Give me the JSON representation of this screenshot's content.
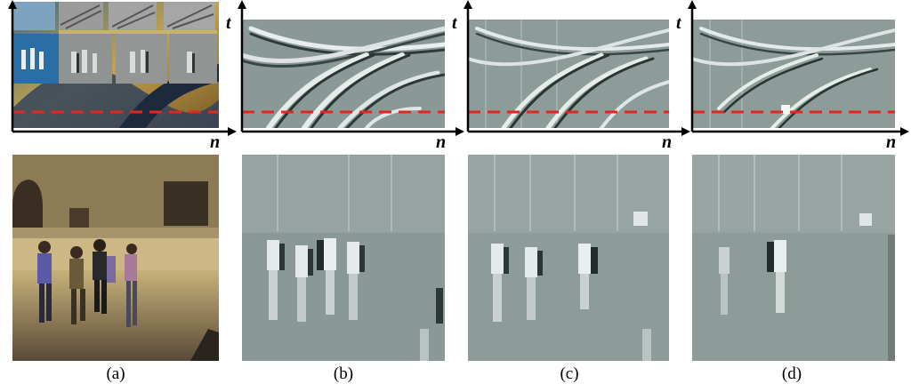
{
  "figure": {
    "panels": [
      {
        "id": "a",
        "caption": "(a)",
        "t_axis": "t",
        "n_axis": "n",
        "content": "rgb frame with tiled inset thumbnails"
      },
      {
        "id": "b",
        "caption": "(b)",
        "t_axis": "t",
        "n_axis": "n",
        "content": "event slice and event frame"
      },
      {
        "id": "c",
        "caption": "(c)",
        "t_axis": "t",
        "n_axis": "n",
        "content": "event slice and event frame"
      },
      {
        "id": "d",
        "caption": "(d)",
        "t_axis": "t",
        "n_axis": "n",
        "content": "event slice and event frame"
      }
    ],
    "colors": {
      "slice_line": "#e3261e",
      "axis": "#000000",
      "event_gray": "#8a9997"
    }
  }
}
